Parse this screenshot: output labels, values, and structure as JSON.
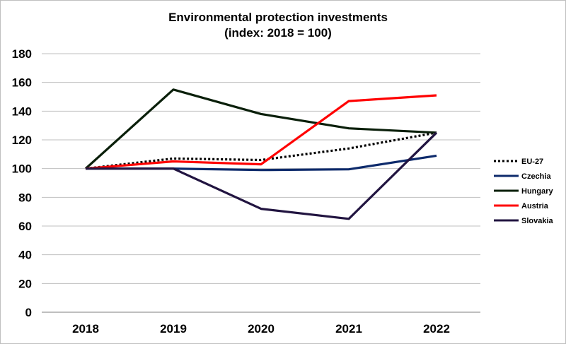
{
  "chart_data": {
    "type": "line",
    "title": "Environmental protection investments",
    "subtitle": "(index: 2018 = 100)",
    "categories": [
      "2018",
      "2019",
      "2020",
      "2021",
      "2022"
    ],
    "ylim": [
      0,
      180
    ],
    "yticks": [
      "0",
      "20",
      "40",
      "60",
      "80",
      "100",
      "120",
      "140",
      "160",
      "180"
    ],
    "grid": true,
    "legend_position": "right",
    "series": [
      {
        "name": "EU-27",
        "values": [
          100,
          107,
          106,
          114,
          125
        ],
        "color": "#000000",
        "dashed": true
      },
      {
        "name": "Czechia",
        "values": [
          100,
          100,
          99,
          99.5,
          109
        ],
        "color": "#0d2a6b",
        "dashed": false
      },
      {
        "name": "Hungary",
        "values": [
          100,
          155,
          138,
          128,
          125
        ],
        "color": "#0a1f0a",
        "dashed": false
      },
      {
        "name": "Austria",
        "values": [
          100,
          105,
          103,
          147,
          151
        ],
        "color": "#ff0000",
        "dashed": false
      },
      {
        "name": "Slovakia",
        "values": [
          100,
          100,
          72,
          65,
          125
        ],
        "color": "#211440",
        "dashed": false
      }
    ]
  }
}
